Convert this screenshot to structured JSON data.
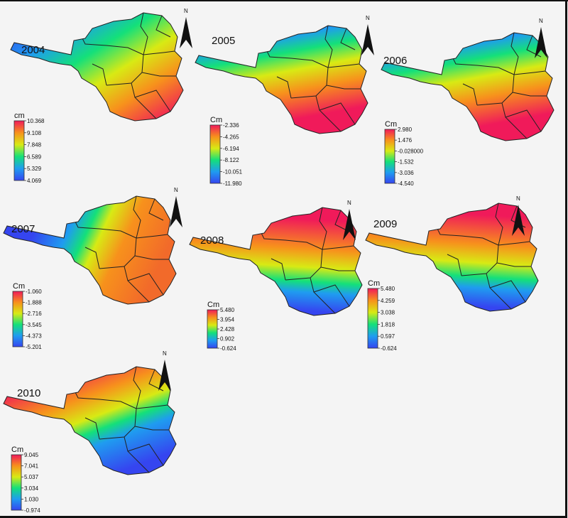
{
  "figure": {
    "description_title": ""
  },
  "colors": {
    "ramp": [
      "#3545f0",
      "#1f9cf0",
      "#14e07a",
      "#d8ea14",
      "#f7911c",
      "#f01a5a"
    ],
    "boundary": "#222222",
    "background": "#f4f4f4"
  },
  "panels": [
    {
      "year": "2004",
      "unit": "cm",
      "ticks": [
        "10.368",
        "9.108",
        "7.848",
        "6.589",
        "5.329",
        "4.069"
      ],
      "north": "N",
      "gradient_dir": "diag_se"
    },
    {
      "year": "2005",
      "unit": "Cm",
      "ticks": [
        "-2.336",
        "-4.265",
        "-6.194",
        "-8.122",
        "-10.051",
        "-11.980"
      ],
      "north": "N",
      "gradient_dir": "s"
    },
    {
      "year": "2006",
      "unit": "Cm",
      "ticks": [
        "2.980",
        "1.476",
        "-0.028000",
        "-1.532",
        "-3.036",
        "-4.540"
      ],
      "north": "N",
      "gradient_dir": "s"
    },
    {
      "year": "2007",
      "unit": "Cm",
      "ticks": [
        "-1.060",
        "-1.888",
        "-2.716",
        "-3.545",
        "-4.373",
        "-5.201"
      ],
      "north": "N",
      "gradient_dir": "e"
    },
    {
      "year": "2008",
      "unit": "Cm",
      "ticks": [
        "5.480",
        "3.954",
        "2.428",
        "0.902",
        "-0.624"
      ],
      "north": "N",
      "gradient_dir": "n"
    },
    {
      "year": "2009",
      "unit": "Cm",
      "ticks": [
        "5.480",
        "4.259",
        "3.038",
        "1.818",
        "0.597",
        "-0.624"
      ],
      "north": "N",
      "gradient_dir": "n"
    },
    {
      "year": "2010",
      "unit": "Cm",
      "ticks": [
        "9.045",
        "7.041",
        "5.037",
        "3.034",
        "1.030",
        "-0.974"
      ],
      "north": "N",
      "gradient_dir": "nw"
    }
  ]
}
